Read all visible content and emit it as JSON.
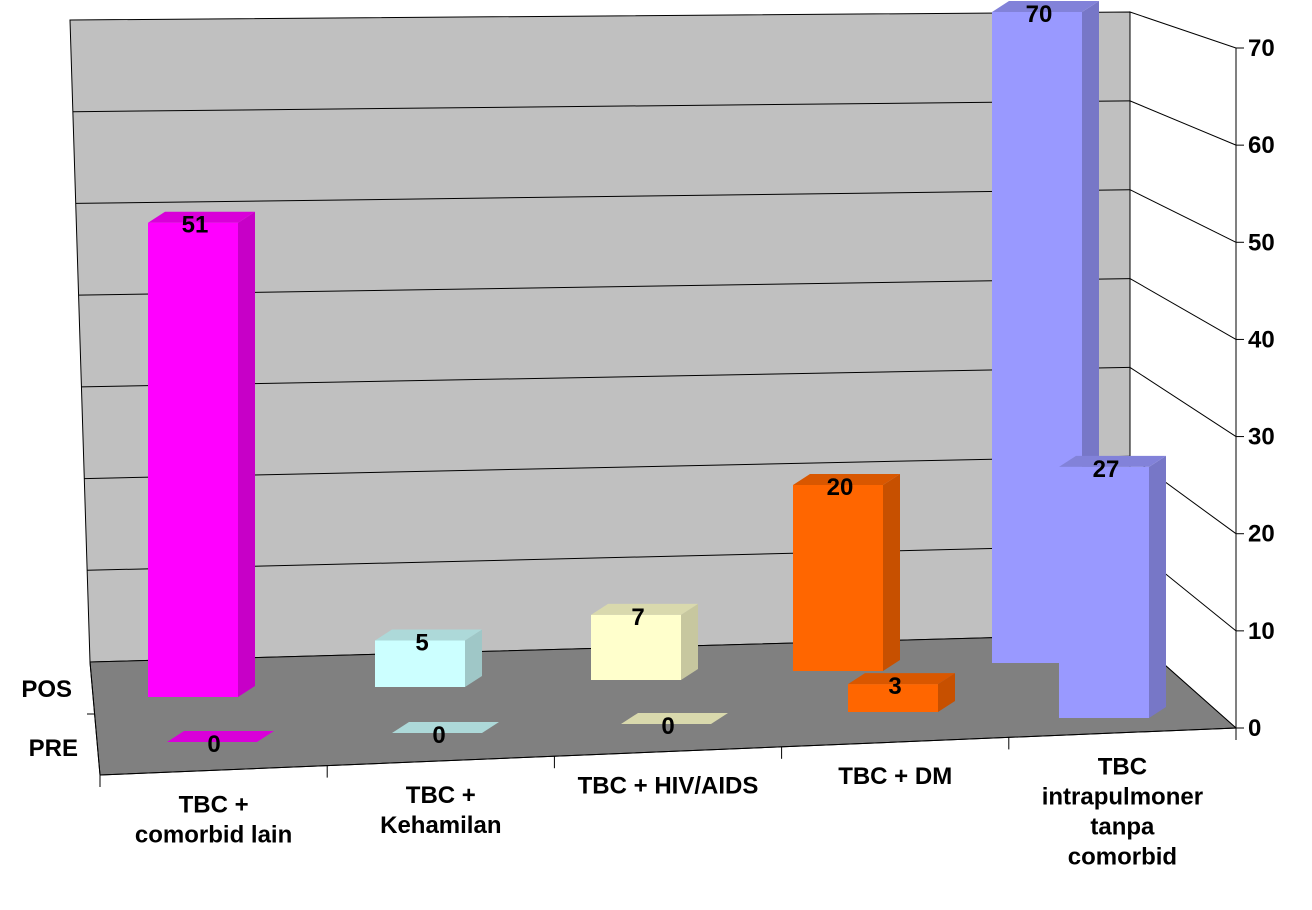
{
  "chart_data": {
    "type": "bar",
    "title": "",
    "xlabel": "",
    "ylabel": "",
    "ylim": [
      0,
      70
    ],
    "yticks": [
      0,
      10,
      20,
      30,
      40,
      50,
      60,
      70
    ],
    "grid": true,
    "legend": "none",
    "categories": [
      [
        "TBC +",
        "comorbid lain"
      ],
      [
        "TBC +",
        "Kehamilan"
      ],
      [
        "TBC + HIV/AIDS"
      ],
      [
        "TBC + DM"
      ],
      [
        "TBC",
        "intrapulmoner",
        "tanpa",
        "comorbid"
      ]
    ],
    "series": [
      {
        "name": "PRE",
        "values": [
          0,
          0,
          0,
          3,
          27
        ]
      },
      {
        "name": "POS",
        "values": [
          51,
          5,
          7,
          20,
          70
        ]
      }
    ],
    "colors": [
      "#ff00ff",
      "#ccffff",
      "#ffffcc",
      "#ff6600",
      "#9999ff"
    ]
  }
}
